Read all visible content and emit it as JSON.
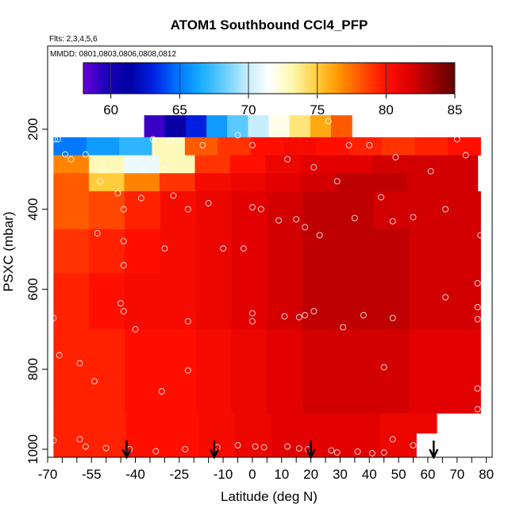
{
  "chart_data": {
    "type": "heatmap",
    "title": "ATOM1 Southbound CCl4_PFP",
    "subtitle_flights": "Flts: 2,3,4,5,6",
    "subtitle_dates": "MMDD: 0801,0803,0806,0808,0812",
    "xlabel": "Latitude (deg N)",
    "ylabel": "PSXC (mbar)",
    "xlim": [
      -70,
      82
    ],
    "ylim": [
      1020,
      0
    ],
    "x_ticks_labeled": [
      -70,
      -55,
      -40,
      -25,
      -10,
      0,
      10,
      20,
      30,
      40,
      50,
      60,
      70,
      80
    ],
    "x_ticks_minor": [
      -65,
      -60,
      -50,
      -45,
      -35,
      -30,
      -20,
      -15,
      -5,
      5,
      15,
      25,
      35,
      45,
      55,
      65,
      75
    ],
    "y_ticks": [
      200,
      400,
      600,
      800,
      1000
    ],
    "colorbar": {
      "min": 58,
      "max": 85,
      "ticks": [
        60,
        65,
        70,
        75,
        80,
        85
      ],
      "colors": [
        "#6a00d8",
        "#1a00b8",
        "#0000a0",
        "#0020e0",
        "#0070ff",
        "#14aaff",
        "#60ccff",
        "#c0ecff",
        "#ffffff",
        "#fff8b0",
        "#ffd040",
        "#ff9500",
        "#ff5000",
        "#ff1000",
        "#e00000",
        "#a00000",
        "#600000"
      ]
    },
    "field": {
      "lat_bands": [
        {
          "lat0": -37,
          "lat1": 34,
          "p0": 165,
          "p1": 220,
          "values": [
            59,
            61,
            63,
            66,
            68,
            70,
            72,
            74,
            76,
            78
          ]
        },
        {
          "lat0": -68,
          "lat1": 78,
          "p0": 220,
          "p1": 265,
          "values": [
            65,
            66,
            67,
            73,
            78,
            79,
            80,
            80.5,
            80,
            79.5,
            79,
            79.5,
            80
          ]
        },
        {
          "lat0": -68,
          "lat1": 77,
          "p0": 265,
          "p1": 310,
          "values": [
            77,
            73,
            71,
            73,
            79,
            80,
            81,
            81.5,
            81.5,
            82,
            82,
            82
          ]
        },
        {
          "lat0": -68,
          "lat1": 77,
          "p0": 310,
          "p1": 355,
          "values": [
            78,
            75,
            77,
            79,
            80.5,
            81,
            81.5,
            82,
            82.5,
            82.5,
            82,
            82
          ]
        },
        {
          "lat0": -68,
          "lat1": 78,
          "p0": 355,
          "p1": 450,
          "values": [
            78,
            78.5,
            79.5,
            80.5,
            81,
            81.5,
            82,
            82.5,
            82.5,
            82,
            82,
            82
          ]
        },
        {
          "lat0": -68,
          "lat1": 78,
          "p0": 450,
          "p1": 560,
          "values": [
            79,
            79.5,
            80,
            80.5,
            81,
            81.5,
            82,
            82.5,
            82.5,
            82.5,
            82,
            82
          ]
        },
        {
          "lat0": -68,
          "lat1": 78,
          "p0": 560,
          "p1": 700,
          "values": [
            79.5,
            80,
            80.5,
            80.5,
            81,
            81.5,
            82,
            82.5,
            82.5,
            82.5,
            82,
            82
          ]
        },
        {
          "lat0": -68,
          "lat1": 78,
          "p0": 700,
          "p1": 910,
          "values": [
            79.5,
            79.5,
            80,
            80,
            80.5,
            81,
            81.5,
            82,
            82,
            82,
            81.5,
            81.5
          ]
        },
        {
          "lat0": -68,
          "lat1": 56,
          "p0": 910,
          "p1": 1020,
          "values": [
            79.5,
            79.5,
            80,
            80,
            80.5,
            81,
            81.5,
            81.5,
            81.5,
            81
          ]
        },
        {
          "lat0": 56,
          "lat1": 63,
          "p0": 910,
          "p1": 960,
          "values": [
            81,
            81
          ]
        }
      ]
    },
    "samples": [
      {
        "lat": -67.5,
        "p": 225
      },
      {
        "lat": -66.5,
        "p": 225
      },
      {
        "lat": -64,
        "p": 263
      },
      {
        "lat": -62,
        "p": 275
      },
      {
        "lat": -57,
        "p": 263
      },
      {
        "lat": -52,
        "p": 330
      },
      {
        "lat": -51,
        "p": 300
      },
      {
        "lat": -42,
        "p": 200
      },
      {
        "lat": -37,
        "p": 300
      },
      {
        "lat": -34,
        "p": 225
      },
      {
        "lat": -28,
        "p": 228
      },
      {
        "lat": -25,
        "p": 228
      },
      {
        "lat": -17,
        "p": 240
      },
      {
        "lat": -5,
        "p": 215
      },
      {
        "lat": 0,
        "p": 240
      },
      {
        "lat": 12,
        "p": 275
      },
      {
        "lat": 21,
        "p": 295
      },
      {
        "lat": 33,
        "p": 240
      },
      {
        "lat": 40,
        "p": 240
      },
      {
        "lat": 49,
        "p": 270
      },
      {
        "lat": 61,
        "p": 305
      },
      {
        "lat": 70,
        "p": 225
      },
      {
        "lat": 73,
        "p": 265
      },
      {
        "lat": 26,
        "p": 180
      },
      {
        "lat": -46,
        "p": 360
      },
      {
        "lat": -38,
        "p": 372
      },
      {
        "lat": -30,
        "p": 300
      },
      {
        "lat": -27,
        "p": 366
      },
      {
        "lat": -22,
        "p": 400
      },
      {
        "lat": -15,
        "p": 385
      },
      {
        "lat": 0,
        "p": 395
      },
      {
        "lat": 3,
        "p": 400
      },
      {
        "lat": 9,
        "p": 428
      },
      {
        "lat": 15,
        "p": 425
      },
      {
        "lat": 18,
        "p": 445
      },
      {
        "lat": 23,
        "p": 465
      },
      {
        "lat": 29,
        "p": 330
      },
      {
        "lat": 35,
        "p": 422
      },
      {
        "lat": 44,
        "p": 370
      },
      {
        "lat": 48,
        "p": 430
      },
      {
        "lat": 55,
        "p": 420
      },
      {
        "lat": 66,
        "p": 400
      },
      {
        "lat": -44,
        "p": 400
      },
      {
        "lat": -44,
        "p": 480
      },
      {
        "lat": -53,
        "p": 460
      },
      {
        "lat": -30,
        "p": 498
      },
      {
        "lat": -10,
        "p": 498
      },
      {
        "lat": -3,
        "p": 498
      },
      {
        "lat": -44,
        "p": 540
      },
      {
        "lat": -45,
        "p": 635
      },
      {
        "lat": -44,
        "p": 655
      },
      {
        "lat": -68,
        "p": 672
      },
      {
        "lat": -40,
        "p": 700
      },
      {
        "lat": -22,
        "p": 680
      },
      {
        "lat": 0,
        "p": 660
      },
      {
        "lat": 0,
        "p": 680
      },
      {
        "lat": 11,
        "p": 668
      },
      {
        "lat": 16,
        "p": 670
      },
      {
        "lat": 18,
        "p": 665
      },
      {
        "lat": 21,
        "p": 655
      },
      {
        "lat": 31,
        "p": 695
      },
      {
        "lat": 38,
        "p": 665
      },
      {
        "lat": 48,
        "p": 672
      },
      {
        "lat": 66,
        "p": 620
      },
      {
        "lat": 77,
        "p": 645
      },
      {
        "lat": 77,
        "p": 675
      },
      {
        "lat": 77,
        "p": 585
      },
      {
        "lat": 78,
        "p": 465
      },
      {
        "lat": -66,
        "p": 765
      },
      {
        "lat": -59,
        "p": 785
      },
      {
        "lat": -54,
        "p": 830
      },
      {
        "lat": -22,
        "p": 803
      },
      {
        "lat": -31,
        "p": 855
      },
      {
        "lat": 45,
        "p": 795
      },
      {
        "lat": 77,
        "p": 848
      },
      {
        "lat": 77,
        "p": 900
      },
      {
        "lat": -68,
        "p": 978
      },
      {
        "lat": -59,
        "p": 975
      },
      {
        "lat": -57,
        "p": 993
      },
      {
        "lat": -50,
        "p": 997
      },
      {
        "lat": -42,
        "p": 1000
      },
      {
        "lat": -33,
        "p": 1005
      },
      {
        "lat": -23,
        "p": 1000
      },
      {
        "lat": -12,
        "p": 995
      },
      {
        "lat": -5,
        "p": 990
      },
      {
        "lat": 1,
        "p": 993
      },
      {
        "lat": 4,
        "p": 995
      },
      {
        "lat": 12,
        "p": 993
      },
      {
        "lat": 16,
        "p": 998
      },
      {
        "lat": 19,
        "p": 1000
      },
      {
        "lat": 27,
        "p": 1003
      },
      {
        "lat": 36,
        "p": 1006
      },
      {
        "lat": 41,
        "p": 1010
      },
      {
        "lat": 45,
        "p": 1008
      },
      {
        "lat": 48,
        "p": 975
      },
      {
        "lat": 55,
        "p": 990
      },
      {
        "lat": 29,
        "p": 1008
      }
    ],
    "flight_markers_lat": [
      -43,
      -13,
      20,
      62
    ]
  }
}
